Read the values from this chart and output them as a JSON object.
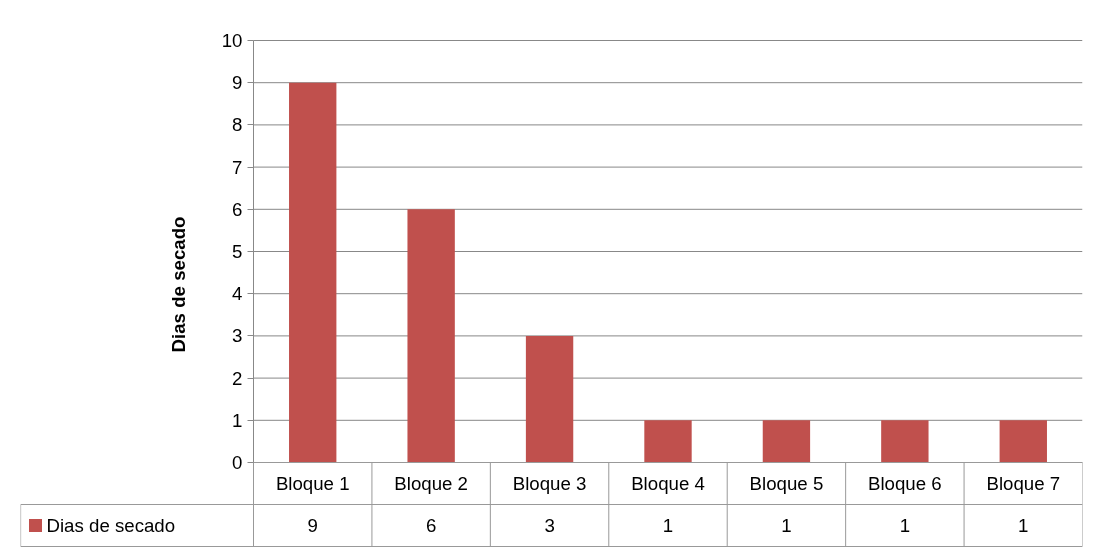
{
  "chart_data": {
    "type": "bar",
    "ylabel": "Dias de secado",
    "categories": [
      "Bloque 1",
      "Bloque 2",
      "Bloque 3",
      "Bloque 4",
      "Bloque 5",
      "Bloque 6",
      "Bloque 7"
    ],
    "series": [
      {
        "name": "Dias de secado",
        "color": "#c0504d",
        "values": [
          9,
          6,
          3,
          1,
          1,
          1,
          1
        ]
      }
    ],
    "ylim": [
      0,
      10
    ],
    "yticks": [
      0,
      1,
      2,
      3,
      4,
      5,
      6,
      7,
      8,
      9,
      10
    ],
    "grid": "y",
    "legend": "bottom",
    "data_labels": true
  }
}
